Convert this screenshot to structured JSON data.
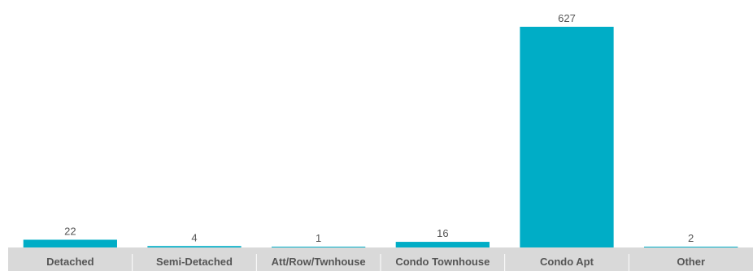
{
  "chart_data": {
    "type": "bar",
    "categories": [
      "Detached",
      "Semi-Detached",
      "Att/Row/Twnhouse",
      "Condo Townhouse",
      "Condo Apt",
      "Other"
    ],
    "values": [
      22,
      4,
      1,
      16,
      627,
      2
    ],
    "data_labels": [
      "22",
      "4",
      "1",
      "16",
      "627",
      "2"
    ],
    "ylim": [
      0,
      670
    ],
    "grid": false,
    "legend": "none",
    "colors": {
      "bar": "#00adc6",
      "axis_band": "#d9d9d9",
      "band_divider": "#ffffff",
      "text": "#555555"
    }
  }
}
